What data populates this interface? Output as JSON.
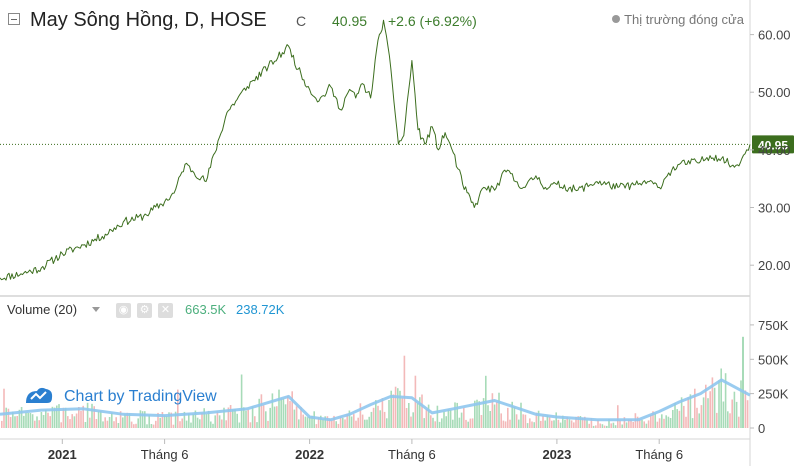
{
  "header": {
    "title": "May Sông Hồng, D, HOSE",
    "close_prefix": "C",
    "close": "40.95",
    "change": "+2.6",
    "change_pct": "(+6.92%)",
    "status": "Thị trường đóng cửa"
  },
  "volume_pane": {
    "label": "Volume (20)",
    "value": "663.5K",
    "ma_value": "238.72K"
  },
  "watermark": "Chart by TradingView",
  "colors": {
    "price_line": "#3c6e1e",
    "last_price_bg": "#3c6e1e",
    "vol_up": "#a7dbb8",
    "vol_down": "#f3b9b9",
    "vol_ma": "#8fc6ee",
    "accent_green": "#4caf7d",
    "accent_blue": "#2196d3"
  },
  "chart_data": [
    {
      "type": "line",
      "name": "price",
      "title": "May Sông Hồng, D, HOSE",
      "x_range": [
        "2020-10-01",
        "2023-10-13"
      ],
      "ylim": [
        15,
        66
      ],
      "y_ticks": [
        "20.00",
        "30.00",
        "40.00",
        "50.00",
        "60.00"
      ],
      "y_tick_values": [
        20,
        30,
        40,
        50,
        60
      ],
      "x_ticks": [
        "2021",
        "Tháng 6",
        "2022",
        "Tháng 6",
        "2023",
        "Tháng 6"
      ],
      "x_tick_dates": [
        "2021-01-01",
        "2021-06-01",
        "2022-01-01",
        "2022-06-01",
        "2023-01-01",
        "2023-06-01"
      ],
      "last_price_label": "40.95",
      "last_price": 40.95,
      "x": [
        "2020-10-01",
        "2020-11-01",
        "2020-12-01",
        "2021-01-01",
        "2021-02-01",
        "2021-03-01",
        "2021-04-01",
        "2021-05-01",
        "2021-06-01",
        "2021-06-15",
        "2021-07-01",
        "2021-08-01",
        "2021-09-01",
        "2021-10-01",
        "2021-11-01",
        "2021-11-15",
        "2021-12-01",
        "2021-12-15",
        "2022-01-01",
        "2022-01-15",
        "2022-02-01",
        "2022-02-15",
        "2022-03-01",
        "2022-03-10",
        "2022-03-20",
        "2022-04-01",
        "2022-04-10",
        "2022-04-20",
        "2022-05-01",
        "2022-05-12",
        "2022-05-20",
        "2022-06-01",
        "2022-06-10",
        "2022-06-20",
        "2022-07-01",
        "2022-07-10",
        "2022-07-20",
        "2022-08-01",
        "2022-08-15",
        "2022-09-01",
        "2022-09-15",
        "2022-10-01",
        "2022-10-10",
        "2022-10-20",
        "2022-11-01",
        "2022-11-15",
        "2022-12-01",
        "2022-12-15",
        "2023-01-01",
        "2023-02-01",
        "2023-03-01",
        "2023-04-01",
        "2023-05-01",
        "2023-05-15",
        "2023-06-01",
        "2023-06-15",
        "2023-07-01",
        "2023-08-01",
        "2023-08-15",
        "2023-09-01",
        "2023-09-20",
        "2023-10-01",
        "2023-10-13"
      ],
      "y": [
        17.8,
        18.5,
        19.5,
        22.0,
        23.5,
        25.0,
        27.5,
        28.5,
        31.0,
        32.5,
        37.5,
        34.5,
        46.5,
        51.0,
        54.5,
        56.0,
        58.0,
        54.0,
        50.5,
        48.5,
        51.0,
        47.0,
        50.5,
        49.0,
        51.5,
        49.0,
        57.5,
        62.5,
        54.0,
        41.0,
        42.5,
        55.5,
        43.5,
        41.0,
        44.0,
        40.0,
        43.0,
        39.5,
        34.0,
        30.0,
        33.5,
        33.0,
        35.0,
        36.5,
        34.5,
        33.5,
        35.5,
        33.5,
        34.0,
        33.0,
        34.5,
        33.5,
        34.0,
        34.5,
        33.5,
        36.0,
        37.5,
        38.0,
        39.0,
        38.5,
        37.0,
        38.5,
        40.95
      ]
    },
    {
      "type": "bar",
      "name": "Volume",
      "ylim": [
        0,
        800000
      ],
      "y_ticks": [
        "0",
        "250K",
        "500K",
        "750K"
      ],
      "y_tick_values": [
        0,
        250000,
        500000,
        750000
      ],
      "last_volume": 663500,
      "last_ma": 238720,
      "ma_series": {
        "x": [
          "2020-10-01",
          "2020-12-01",
          "2021-02-01",
          "2021-04-01",
          "2021-06-01",
          "2021-08-01",
          "2021-10-01",
          "2021-12-01",
          "2022-01-01",
          "2022-02-01",
          "2022-03-01",
          "2022-04-01",
          "2022-05-01",
          "2022-06-01",
          "2022-07-01",
          "2022-08-01",
          "2022-10-01",
          "2022-12-01",
          "2023-01-01",
          "2023-03-01",
          "2023-05-01",
          "2023-06-01",
          "2023-07-01",
          "2023-08-01",
          "2023-09-01",
          "2023-10-13"
        ],
        "y": [
          100000,
          130000,
          140000,
          100000,
          90000,
          110000,
          140000,
          230000,
          80000,
          60000,
          100000,
          170000,
          230000,
          220000,
          110000,
          140000,
          200000,
          100000,
          80000,
          60000,
          60000,
          120000,
          190000,
          250000,
          350000,
          238720
        ]
      }
    }
  ]
}
